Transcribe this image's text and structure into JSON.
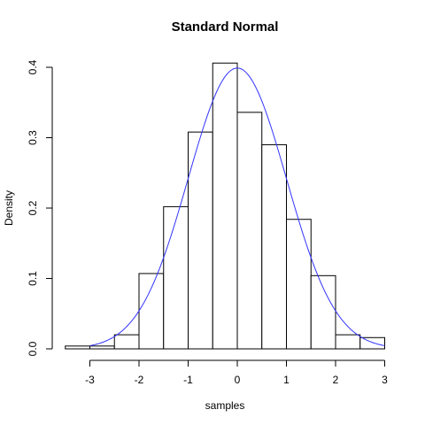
{
  "chart_data": {
    "type": "histogram",
    "title": "Standard Normal",
    "xlabel": "samples",
    "ylabel": "Density",
    "xlim": [
      -3.6,
      3.0
    ],
    "ylim": [
      0,
      0.4
    ],
    "x_ticks": [
      "-3",
      "-2",
      "-1",
      "0",
      "1",
      "2",
      "3"
    ],
    "y_ticks": [
      "0.0",
      "0.1",
      "0.2",
      "0.3",
      "0.4"
    ],
    "bins": [
      {
        "from": -3.5,
        "to": -3.0,
        "density": 0.004
      },
      {
        "from": -3.0,
        "to": -2.5,
        "density": 0.004
      },
      {
        "from": -2.5,
        "to": -2.0,
        "density": 0.02
      },
      {
        "from": -2.0,
        "to": -1.5,
        "density": 0.107
      },
      {
        "from": -1.5,
        "to": -1.0,
        "density": 0.202
      },
      {
        "from": -1.0,
        "to": -0.5,
        "density": 0.308
      },
      {
        "from": -0.5,
        "to": 0.0,
        "density": 0.406
      },
      {
        "from": 0.0,
        "to": 0.5,
        "density": 0.336
      },
      {
        "from": 0.5,
        "to": 1.0,
        "density": 0.29
      },
      {
        "from": 1.0,
        "to": 1.5,
        "density": 0.184
      },
      {
        "from": 1.5,
        "to": 2.0,
        "density": 0.104
      },
      {
        "from": 2.0,
        "to": 2.5,
        "density": 0.02
      },
      {
        "from": 2.5,
        "to": 3.0,
        "density": 0.016
      }
    ],
    "curve": {
      "kind": "normal density",
      "mean": 0,
      "sd": 1,
      "x_range": [
        -3,
        3
      ],
      "color": "#3333ff"
    },
    "bar_fill": "#ffffff",
    "bar_stroke": "#000000",
    "grid": false
  }
}
